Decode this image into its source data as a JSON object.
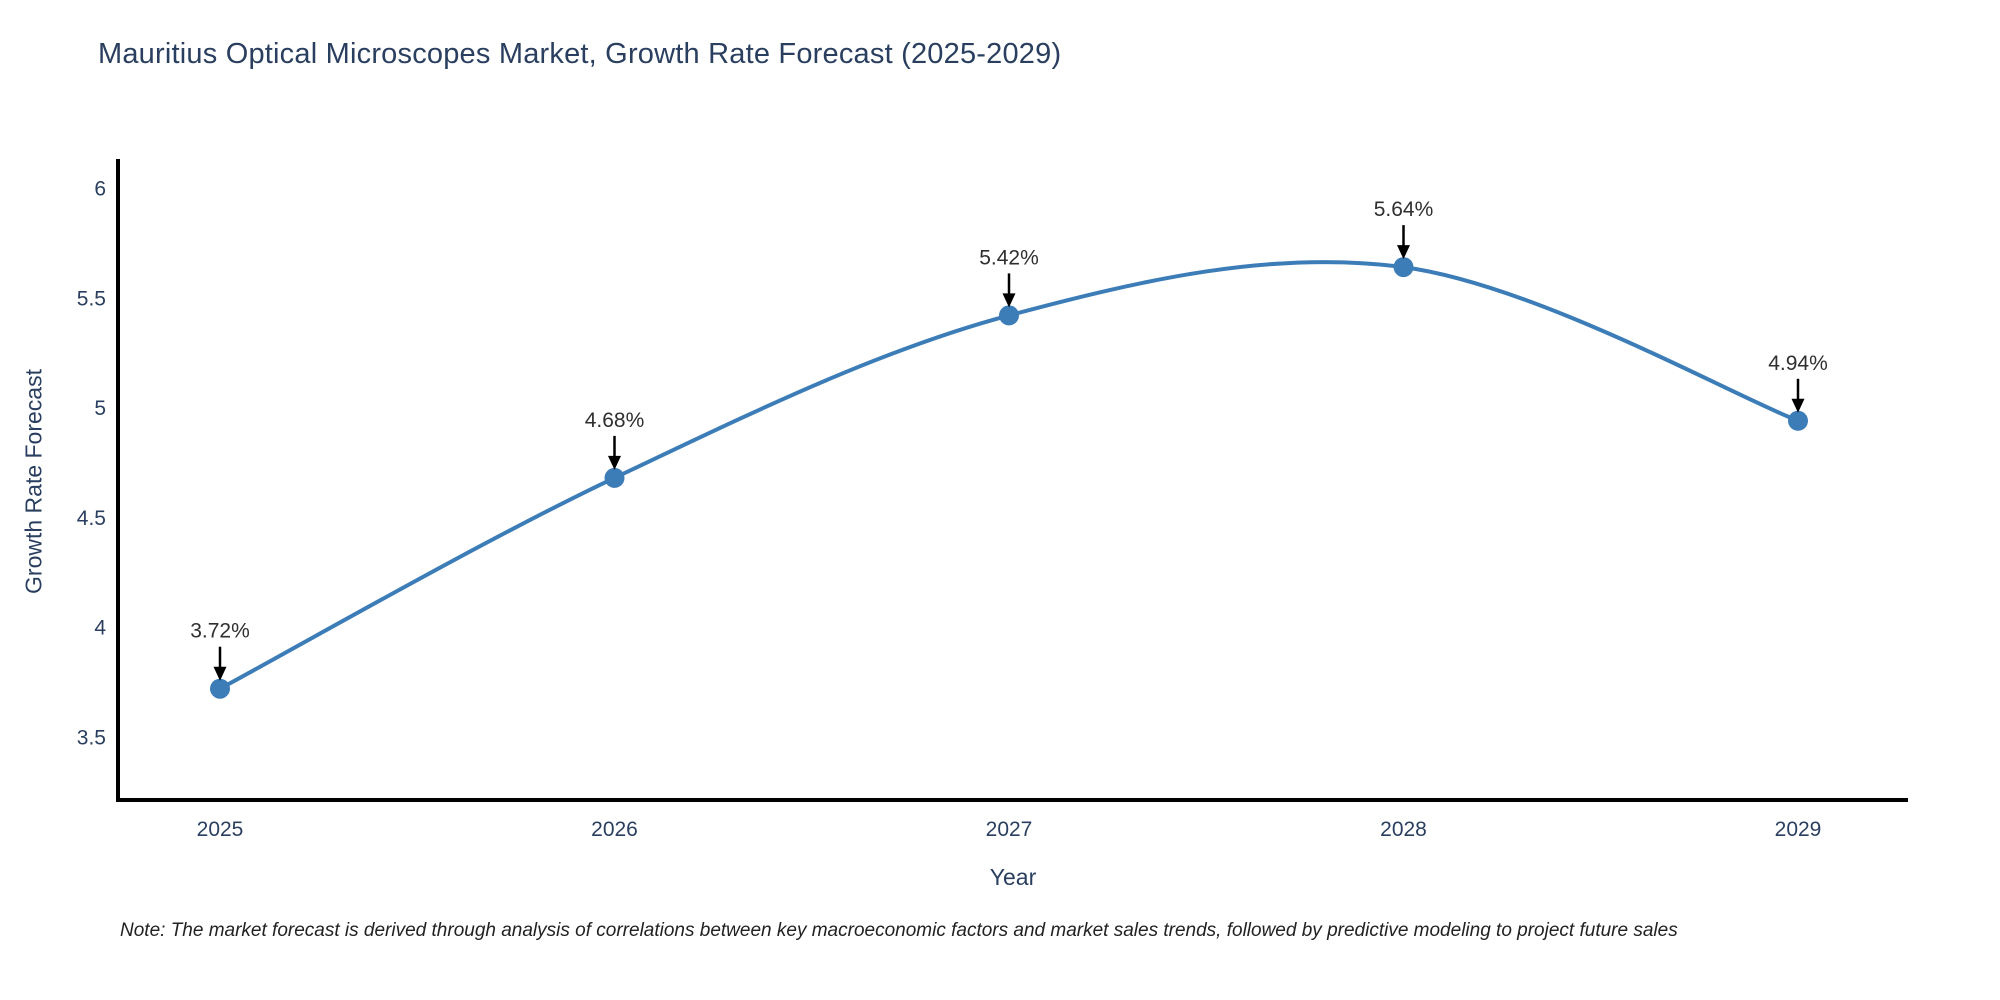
{
  "title": "Mauritius Optical Microscopes Market, Growth Rate Forecast (2025-2029)",
  "note": "Note: The market forecast is derived through analysis of correlations between key macroeconomic factors and market sales trends, followed by predictive modeling to project future sales",
  "chart_data": {
    "type": "line",
    "title": "Mauritius Optical Microscopes Market, Growth Rate Forecast (2025-2029)",
    "xlabel": "Year",
    "ylabel": "Growth Rate Forecast",
    "x": [
      "2025",
      "2026",
      "2027",
      "2028",
      "2029"
    ],
    "series": [
      {
        "name": "Growth Rate Forecast",
        "values": [
          3.72,
          4.68,
          5.42,
          5.64,
          4.94
        ]
      }
    ],
    "point_labels": [
      "3.72%",
      "4.68%",
      "5.42%",
      "5.64%",
      "4.94%"
    ],
    "y_ticks": [
      "3.5",
      "4",
      "4.5",
      "5",
      "5.5",
      "6"
    ],
    "y_tick_values": [
      3.5,
      4,
      4.5,
      5,
      5.5,
      6
    ],
    "ylim": [
      3.21,
      6.13
    ],
    "line_shape": "spline",
    "grid": false,
    "legend": "none",
    "colors": {
      "line": "#3c7db8",
      "marker": "#3c7db8",
      "annotation_text": "#2f2f2f",
      "annotation_arrow": "#000000",
      "axis_line": "#000000",
      "tick_text": "#2a3f5f",
      "title_text": "#2a3f5f"
    }
  }
}
